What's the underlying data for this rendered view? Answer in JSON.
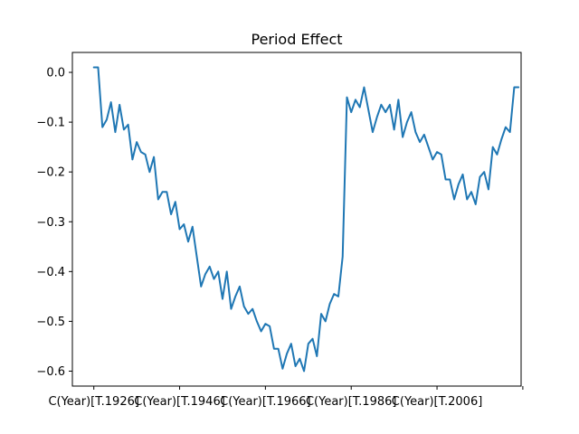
{
  "chart_data": {
    "type": "line",
    "title": "Period Effect",
    "xlabel": "",
    "ylabel": "",
    "ylim": [
      -0.63,
      0.04
    ],
    "xlim": [
      1916.0,
      2020.6
    ],
    "grid": false,
    "legend": "none",
    "color": "#1f77b4",
    "yticks": [
      0.0,
      -0.1,
      -0.2,
      -0.3,
      -0.4,
      -0.5,
      -0.6
    ],
    "ytick_labels": [
      "0.0",
      "−0.1",
      "−0.2",
      "−0.3",
      "−0.4",
      "−0.5",
      "−0.6"
    ],
    "xticks": [
      1921,
      1941,
      1961,
      1981,
      2001,
      2021
    ],
    "xtick_labels": [
      "C(Year)[T.1926]",
      "C(Year)[T.1946]",
      "C(Year)[T.1966]",
      "C(Year)[T.1986]",
      "C(Year)[T.2006]",
      ""
    ],
    "series": [
      {
        "x": [
          1921,
          1922,
          1923,
          1924,
          1925,
          1926,
          1927,
          1928,
          1929,
          1930,
          1931,
          1932,
          1933,
          1934,
          1935,
          1936,
          1937,
          1938,
          1939,
          1940,
          1941,
          1942,
          1943,
          1944,
          1945,
          1946,
          1947,
          1948,
          1949,
          1950,
          1951,
          1952,
          1953,
          1954,
          1955,
          1956,
          1957,
          1958,
          1959,
          1960,
          1961,
          1962,
          1963,
          1964,
          1965,
          1966,
          1967,
          1968,
          1969,
          1970,
          1971,
          1972,
          1973,
          1974,
          1975,
          1976,
          1977,
          1978,
          1979,
          1980,
          1981,
          1982,
          1983,
          1984,
          1985,
          1986,
          1987,
          1988,
          1989,
          1990,
          1991,
          1992,
          1993,
          1994,
          1995,
          1996,
          1997,
          1998,
          1999,
          2000,
          2001,
          2002,
          2003,
          2004,
          2005,
          2006,
          2007,
          2008,
          2009,
          2010,
          2011,
          2012,
          2013,
          2014,
          2015,
          2016,
          2017,
          2018,
          2019,
          2020
        ],
        "y": [
          0.01,
          0.01,
          -0.11,
          -0.095,
          -0.06,
          -0.12,
          -0.065,
          -0.115,
          -0.105,
          -0.175,
          -0.14,
          -0.16,
          -0.165,
          -0.2,
          -0.17,
          -0.255,
          -0.24,
          -0.24,
          -0.285,
          -0.26,
          -0.315,
          -0.305,
          -0.34,
          -0.31,
          -0.37,
          -0.43,
          -0.405,
          -0.39,
          -0.415,
          -0.4,
          -0.455,
          -0.4,
          -0.475,
          -0.45,
          -0.43,
          -0.47,
          -0.485,
          -0.475,
          -0.5,
          -0.52,
          -0.505,
          -0.51,
          -0.555,
          -0.555,
          -0.595,
          -0.565,
          -0.545,
          -0.59,
          -0.575,
          -0.6,
          -0.545,
          -0.535,
          -0.57,
          -0.485,
          -0.5,
          -0.465,
          -0.445,
          -0.45,
          -0.37,
          -0.05,
          -0.08,
          -0.055,
          -0.07,
          -0.03,
          -0.075,
          -0.12,
          -0.09,
          -0.065,
          -0.08,
          -0.065,
          -0.115,
          -0.055,
          -0.13,
          -0.1,
          -0.08,
          -0.12,
          -0.14,
          -0.125,
          -0.15,
          -0.175,
          -0.16,
          -0.165,
          -0.215,
          -0.215,
          -0.255,
          -0.225,
          -0.205,
          -0.255,
          -0.24,
          -0.265,
          -0.21,
          -0.2,
          -0.235,
          -0.15,
          -0.165,
          -0.135,
          -0.11,
          -0.12,
          -0.03,
          -0.03
        ]
      }
    ]
  }
}
